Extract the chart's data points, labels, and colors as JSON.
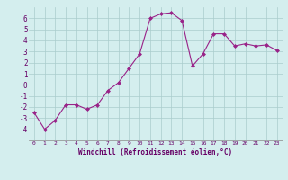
{
  "x": [
    0,
    1,
    2,
    3,
    4,
    5,
    6,
    7,
    8,
    9,
    10,
    11,
    12,
    13,
    14,
    15,
    16,
    17,
    18,
    19,
    20,
    21,
    22,
    23
  ],
  "y": [
    -2.5,
    -4.0,
    -3.2,
    -1.8,
    -1.8,
    -2.2,
    -1.8,
    -0.5,
    0.2,
    1.5,
    2.8,
    6.0,
    6.4,
    6.5,
    5.8,
    1.7,
    2.8,
    4.6,
    4.6,
    3.5,
    3.7,
    3.5,
    3.6,
    3.1
  ],
  "line_color": "#992288",
  "marker": "D",
  "marker_size": 2,
  "bg_color": "#d4eeee",
  "grid_color": "#aacccc",
  "xlabel": "Windchill (Refroidissement éolien,°C)",
  "xlabel_color": "#660066",
  "tick_color": "#660066",
  "ylim": [
    -5,
    7
  ],
  "xlim": [
    -0.5,
    23.5
  ],
  "yticks": [
    -4,
    -3,
    -2,
    -1,
    0,
    1,
    2,
    3,
    4,
    5,
    6
  ],
  "xticks": [
    0,
    1,
    2,
    3,
    4,
    5,
    6,
    7,
    8,
    9,
    10,
    11,
    12,
    13,
    14,
    15,
    16,
    17,
    18,
    19,
    20,
    21,
    22,
    23
  ],
  "figsize": [
    3.2,
    2.0
  ],
  "dpi": 100
}
